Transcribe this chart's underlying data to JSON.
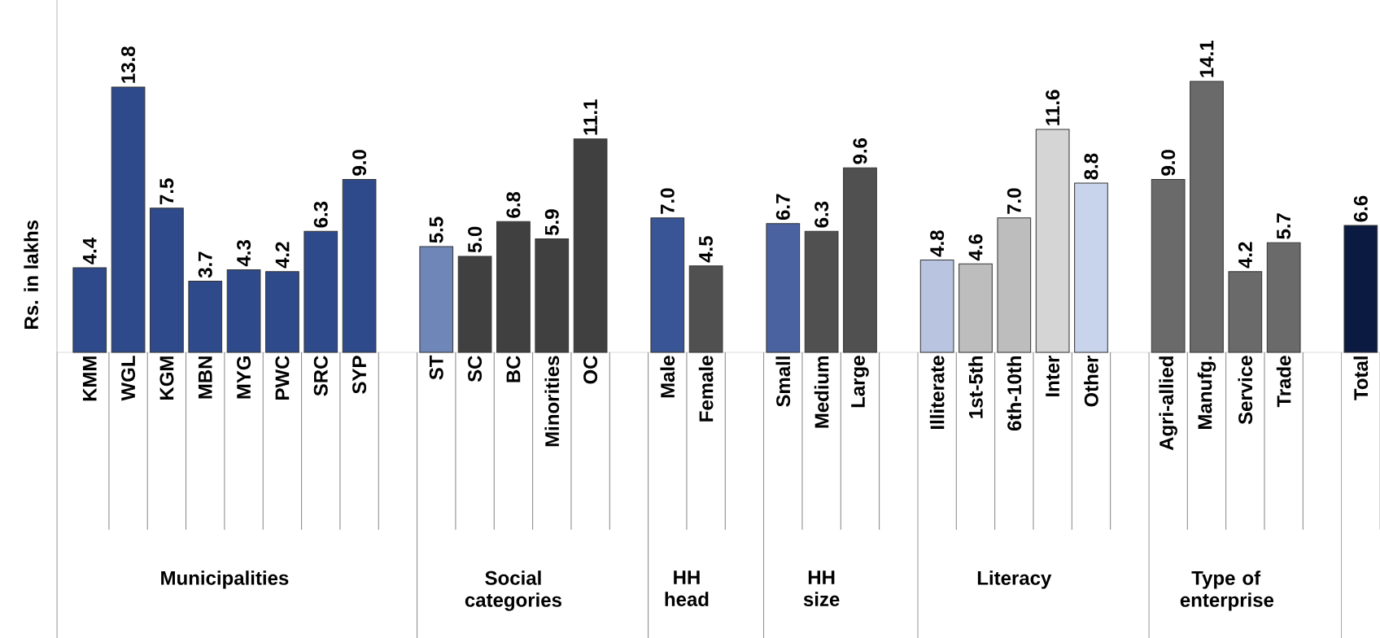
{
  "chart_data": {
    "type": "bar",
    "ylabel": "Rs. in lakhs",
    "categories": [
      "KMM",
      "WGL",
      "KGM",
      "MBN",
      "MYG",
      "PWC",
      "SRC",
      "SYP",
      null,
      "ST",
      "SC",
      "BC",
      "Minorities",
      "OC",
      null,
      "Male",
      "Female",
      null,
      "Small",
      "Medium",
      "Large",
      null,
      "Illiterate",
      "1st-5th",
      "6th-10th",
      "Inter",
      "Other",
      null,
      "Agri-allied",
      "Manufg.",
      "Service",
      "Trade",
      null,
      "Total"
    ],
    "values": [
      4.4,
      13.8,
      7.5,
      3.7,
      4.3,
      4.2,
      6.3,
      9.0,
      null,
      5.5,
      5.0,
      6.8,
      5.9,
      11.1,
      null,
      7.0,
      4.5,
      null,
      6.7,
      6.3,
      9.6,
      null,
      4.8,
      4.6,
      7.0,
      11.6,
      8.8,
      null,
      9.0,
      14.1,
      4.2,
      5.7,
      null,
      6.6
    ],
    "colors": [
      "#2e4a8a",
      "#2e4a8a",
      "#2e4a8a",
      "#2e4a8a",
      "#2e4a8a",
      "#2e4a8a",
      "#2e4a8a",
      "#2e4a8a",
      null,
      "#6f86b8",
      "#404040",
      "#404040",
      "#404040",
      "#404040",
      null,
      "#3a5595",
      "#505050",
      null,
      "#4a63a0",
      "#505050",
      "#505050",
      null,
      "#b8c4e0",
      "#bdbdbd",
      "#bdbdbd",
      "#d5d5d5",
      "#c8d3ec",
      null,
      "#6a6a6a",
      "#6a6a6a",
      "#6a6a6a",
      "#6a6a6a",
      null,
      "#0a1a40"
    ],
    "value_labels": [
      "4.4",
      "13.8",
      "7.5",
      "3.7",
      "4.3",
      "4.2",
      "6.3",
      "9.0",
      null,
      "5.5",
      "5.0",
      "6.8",
      "5.9",
      "11.1",
      null,
      "7.0",
      "4.5",
      null,
      "6.7",
      "6.3",
      "9.6",
      null,
      "4.8",
      "4.6",
      "7.0",
      "11.6",
      "8.8",
      null,
      "9.0",
      "14.1",
      "4.2",
      "5.7",
      null,
      "6.6"
    ],
    "annotations": [
      "Municipalities",
      "Social categories",
      "HH head",
      "HH size",
      "Literacy",
      "Type of enterprise"
    ]
  }
}
